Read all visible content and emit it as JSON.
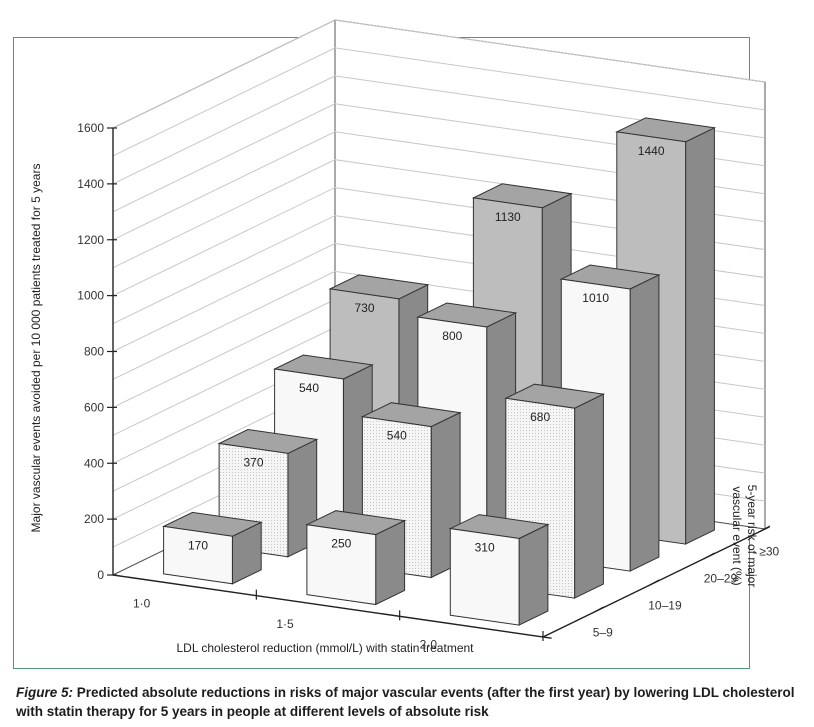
{
  "chart_data": {
    "type": "bar",
    "title": "",
    "xlabel": "LDL cholesterol reduction (mmol/L) with statin treatment",
    "ylabel": "Major vascular events avoided per 10 000 patients treated for 5 years",
    "zlabel": [
      "5-year risk of major",
      "vascular event (%)"
    ],
    "categories": [
      "1·0",
      "1·5",
      "2·0"
    ],
    "ylim": [
      0,
      1600
    ],
    "yticks": [
      "0",
      "200",
      "400",
      "600",
      "800",
      "1000",
      "1200",
      "1400",
      "1600"
    ],
    "series": [
      {
        "name": "5–9",
        "values": [
          170,
          250,
          310
        ]
      },
      {
        "name": "10–19",
        "values": [
          370,
          540,
          680
        ]
      },
      {
        "name": "20–29",
        "values": [
          540,
          800,
          1010
        ]
      },
      {
        "name": "≥30",
        "values": [
          730,
          1130,
          1440
        ]
      }
    ],
    "grid": true
  },
  "caption": {
    "label": "Figure 5:",
    "text": " Predicted absolute reductions in risks of major vascular events (after the first year) by lowering LDL cholesterol with statin therapy for 5 years in people at different levels of absolute risk"
  },
  "colors": {
    "frame": "#4f9a76",
    "back_wall": "#ffffff",
    "grid": "#c8c8c8",
    "bar_front_light": "#f8f8f8",
    "bar_front_dotted": "#f1f1f1",
    "bar_front_grey": "#bdbdbd",
    "bar_side": "#8a8a8a",
    "bar_top": "#a4a4a4"
  }
}
